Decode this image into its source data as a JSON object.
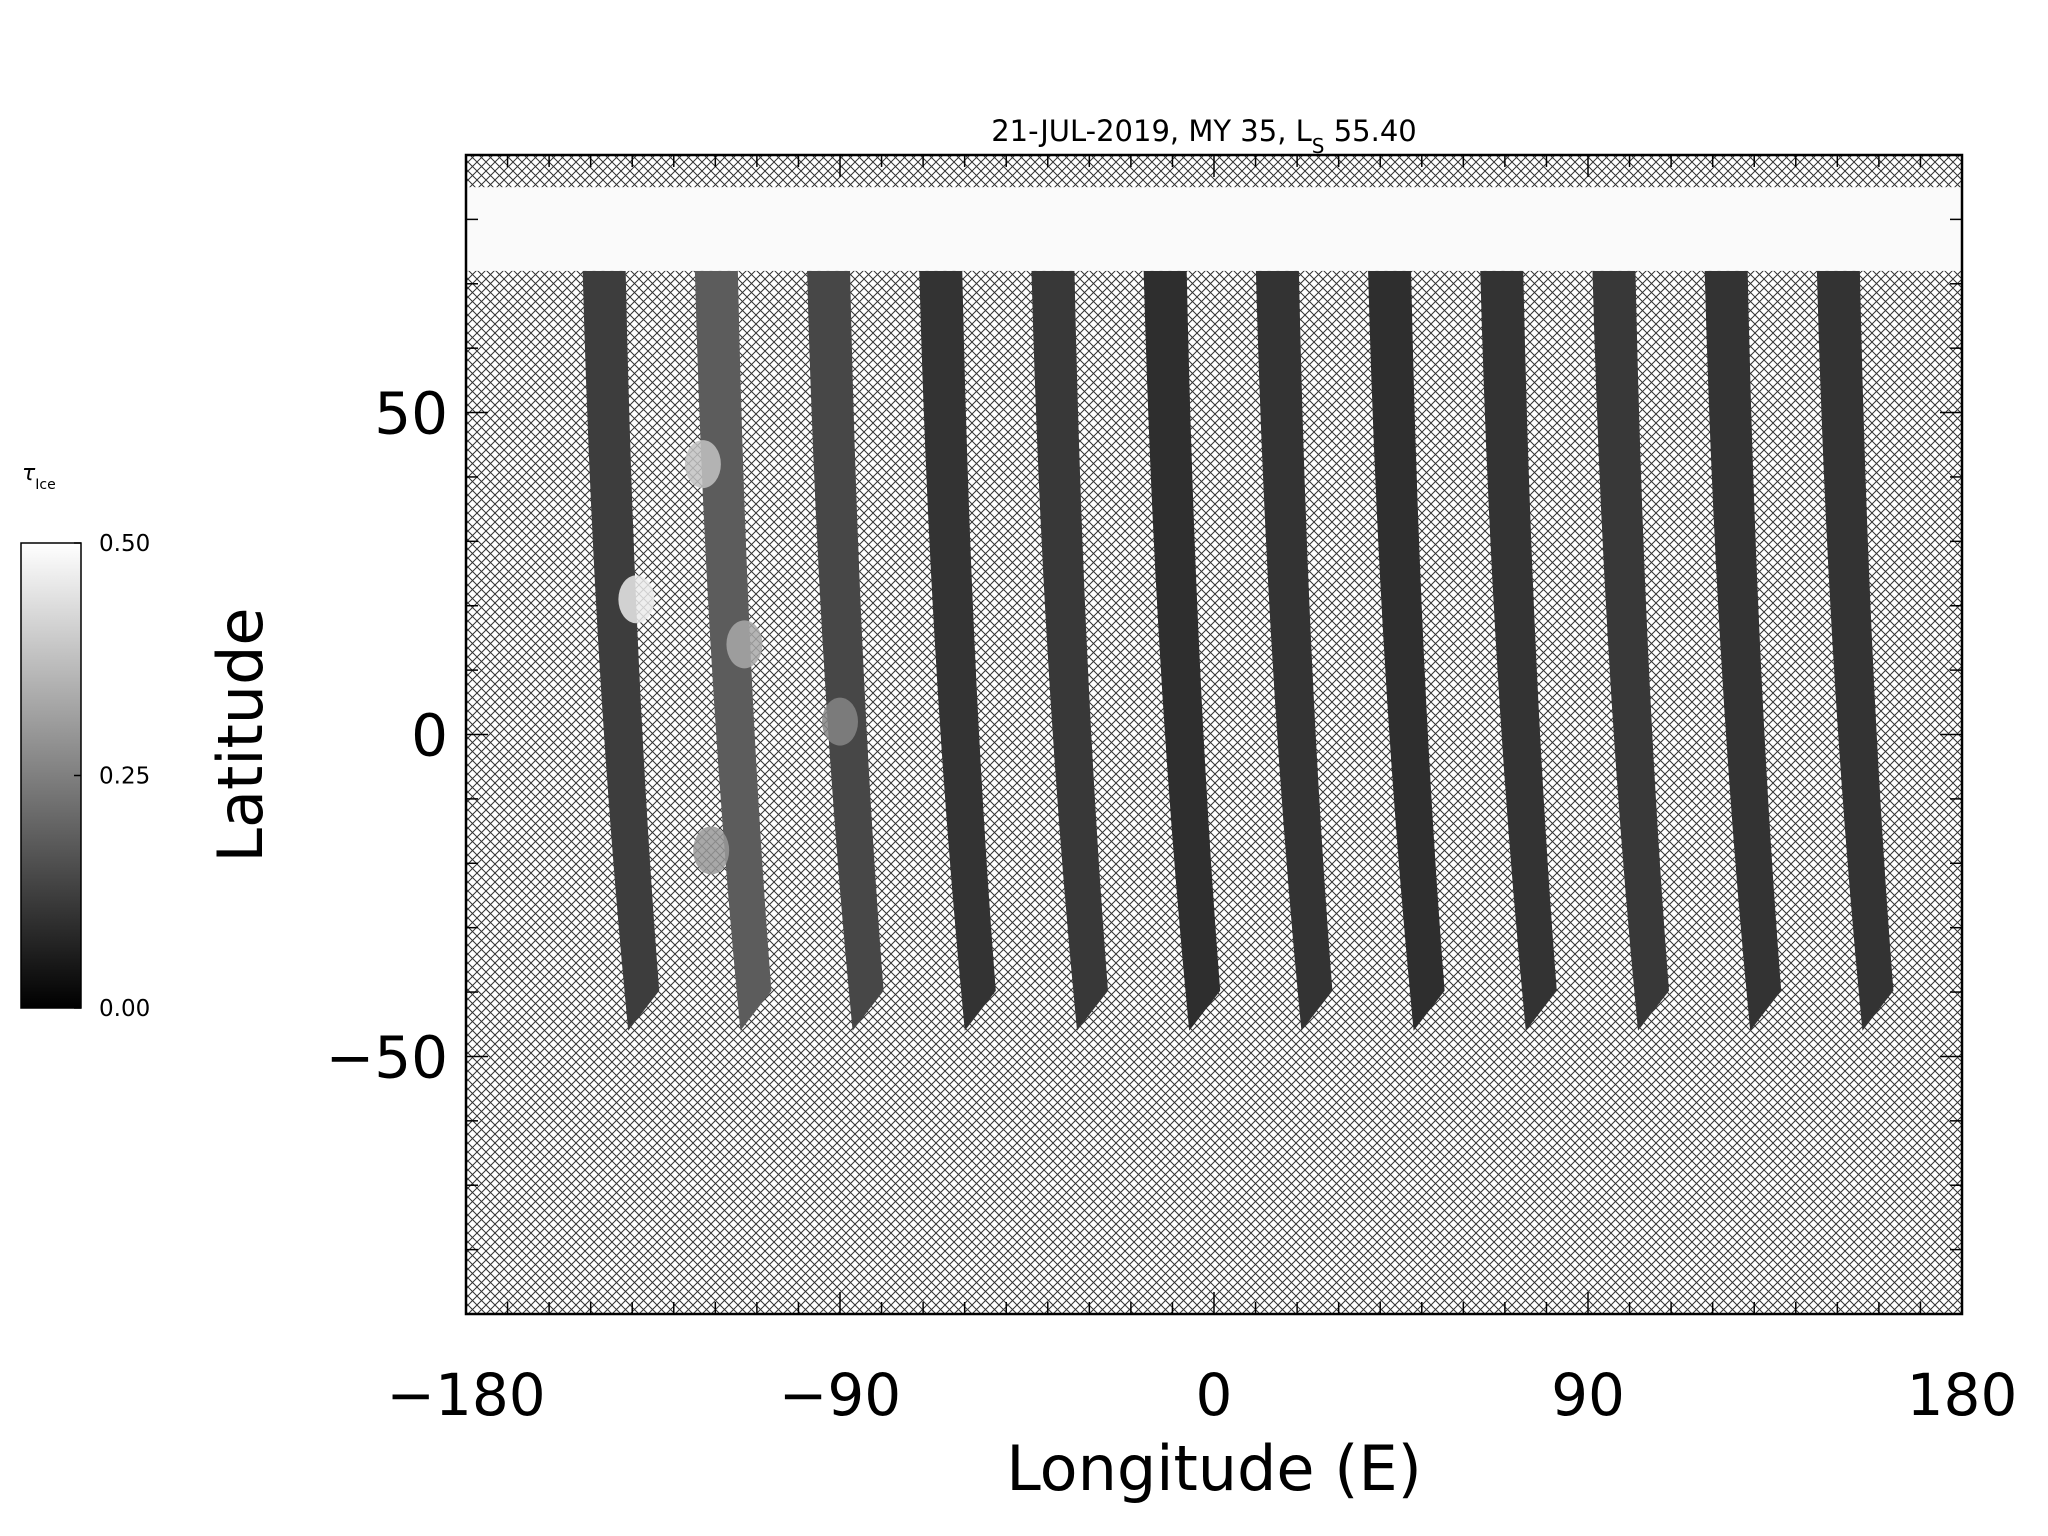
{
  "chart_data": {
    "type": "heatmap",
    "title": "21-JUL-2019, MY 35,  L",
    "title_subscript": "S",
    "title_suffix": " 55.40",
    "xlabel": "Longitude (E)",
    "ylabel": "Latitude",
    "xlim": [
      -180,
      180
    ],
    "ylim": [
      -90,
      90
    ],
    "x_ticks": [
      -180,
      -90,
      0,
      90,
      180
    ],
    "x_tick_labels": [
      "−180",
      "−90",
      "0",
      "90",
      "180"
    ],
    "y_ticks": [
      -50,
      0,
      50
    ],
    "y_tick_labels": [
      "−50",
      "0",
      "50"
    ],
    "x_minor_step": 10,
    "y_minor_step": 10,
    "no_data_fill": "crosshatch",
    "colorbar": {
      "label": "τ",
      "label_subscript": "Ice",
      "min": 0.0,
      "max": 0.5,
      "ticks": [
        0.0,
        0.25,
        0.5
      ],
      "tick_labels": [
        "0.00",
        "0.25",
        "0.50"
      ],
      "colormap": "grayscale",
      "low_color": "#000000",
      "high_color": "#ffffff"
    },
    "polar_cap": {
      "lat_from": 72,
      "lat_to": 85,
      "tau": 0.49
    },
    "swaths": [
      {
        "lon_north": -150,
        "lon_south": -140,
        "lat_north": 72,
        "lat_south": -46,
        "tau": 0.12
      },
      {
        "lon_north": -123,
        "lon_south": -113,
        "lat_north": 72,
        "lat_south": -46,
        "tau": 0.18
      },
      {
        "lon_north": -96,
        "lon_south": -86,
        "lat_north": 72,
        "lat_south": -46,
        "tau": 0.14
      },
      {
        "lon_north": -69,
        "lon_south": -59,
        "lat_north": 72,
        "lat_south": -46,
        "tau": 0.1
      },
      {
        "lon_north": -42,
        "lon_south": -32,
        "lat_north": 72,
        "lat_south": -46,
        "tau": 0.11
      },
      {
        "lon_north": -15,
        "lon_south": -5,
        "lat_north": 72,
        "lat_south": -46,
        "tau": 0.09
      },
      {
        "lon_north": 12,
        "lon_south": 22,
        "lat_north": 72,
        "lat_south": -46,
        "tau": 0.1
      },
      {
        "lon_north": 39,
        "lon_south": 49,
        "lat_north": 72,
        "lat_south": -46,
        "tau": 0.09
      },
      {
        "lon_north": 66,
        "lon_south": 76,
        "lat_north": 72,
        "lat_south": -46,
        "tau": 0.1
      },
      {
        "lon_north": 93,
        "lon_south": 103,
        "lat_north": 72,
        "lat_south": -46,
        "tau": 0.11
      },
      {
        "lon_north": 120,
        "lon_south": 130,
        "lat_north": 72,
        "lat_south": -46,
        "tau": 0.1
      },
      {
        "lon_north": 147,
        "lon_south": 157,
        "lat_north": 72,
        "lat_south": -46,
        "tau": 0.1
      }
    ],
    "bright_features": [
      {
        "lon": -139,
        "lat": 21,
        "tau": 0.46
      },
      {
        "lon": -123,
        "lat": 42,
        "tau": 0.38
      },
      {
        "lon": -113,
        "lat": 14,
        "tau": 0.33
      },
      {
        "lon": -121,
        "lat": -18,
        "tau": 0.3
      },
      {
        "lon": -90,
        "lat": 2,
        "tau": 0.26
      }
    ]
  }
}
